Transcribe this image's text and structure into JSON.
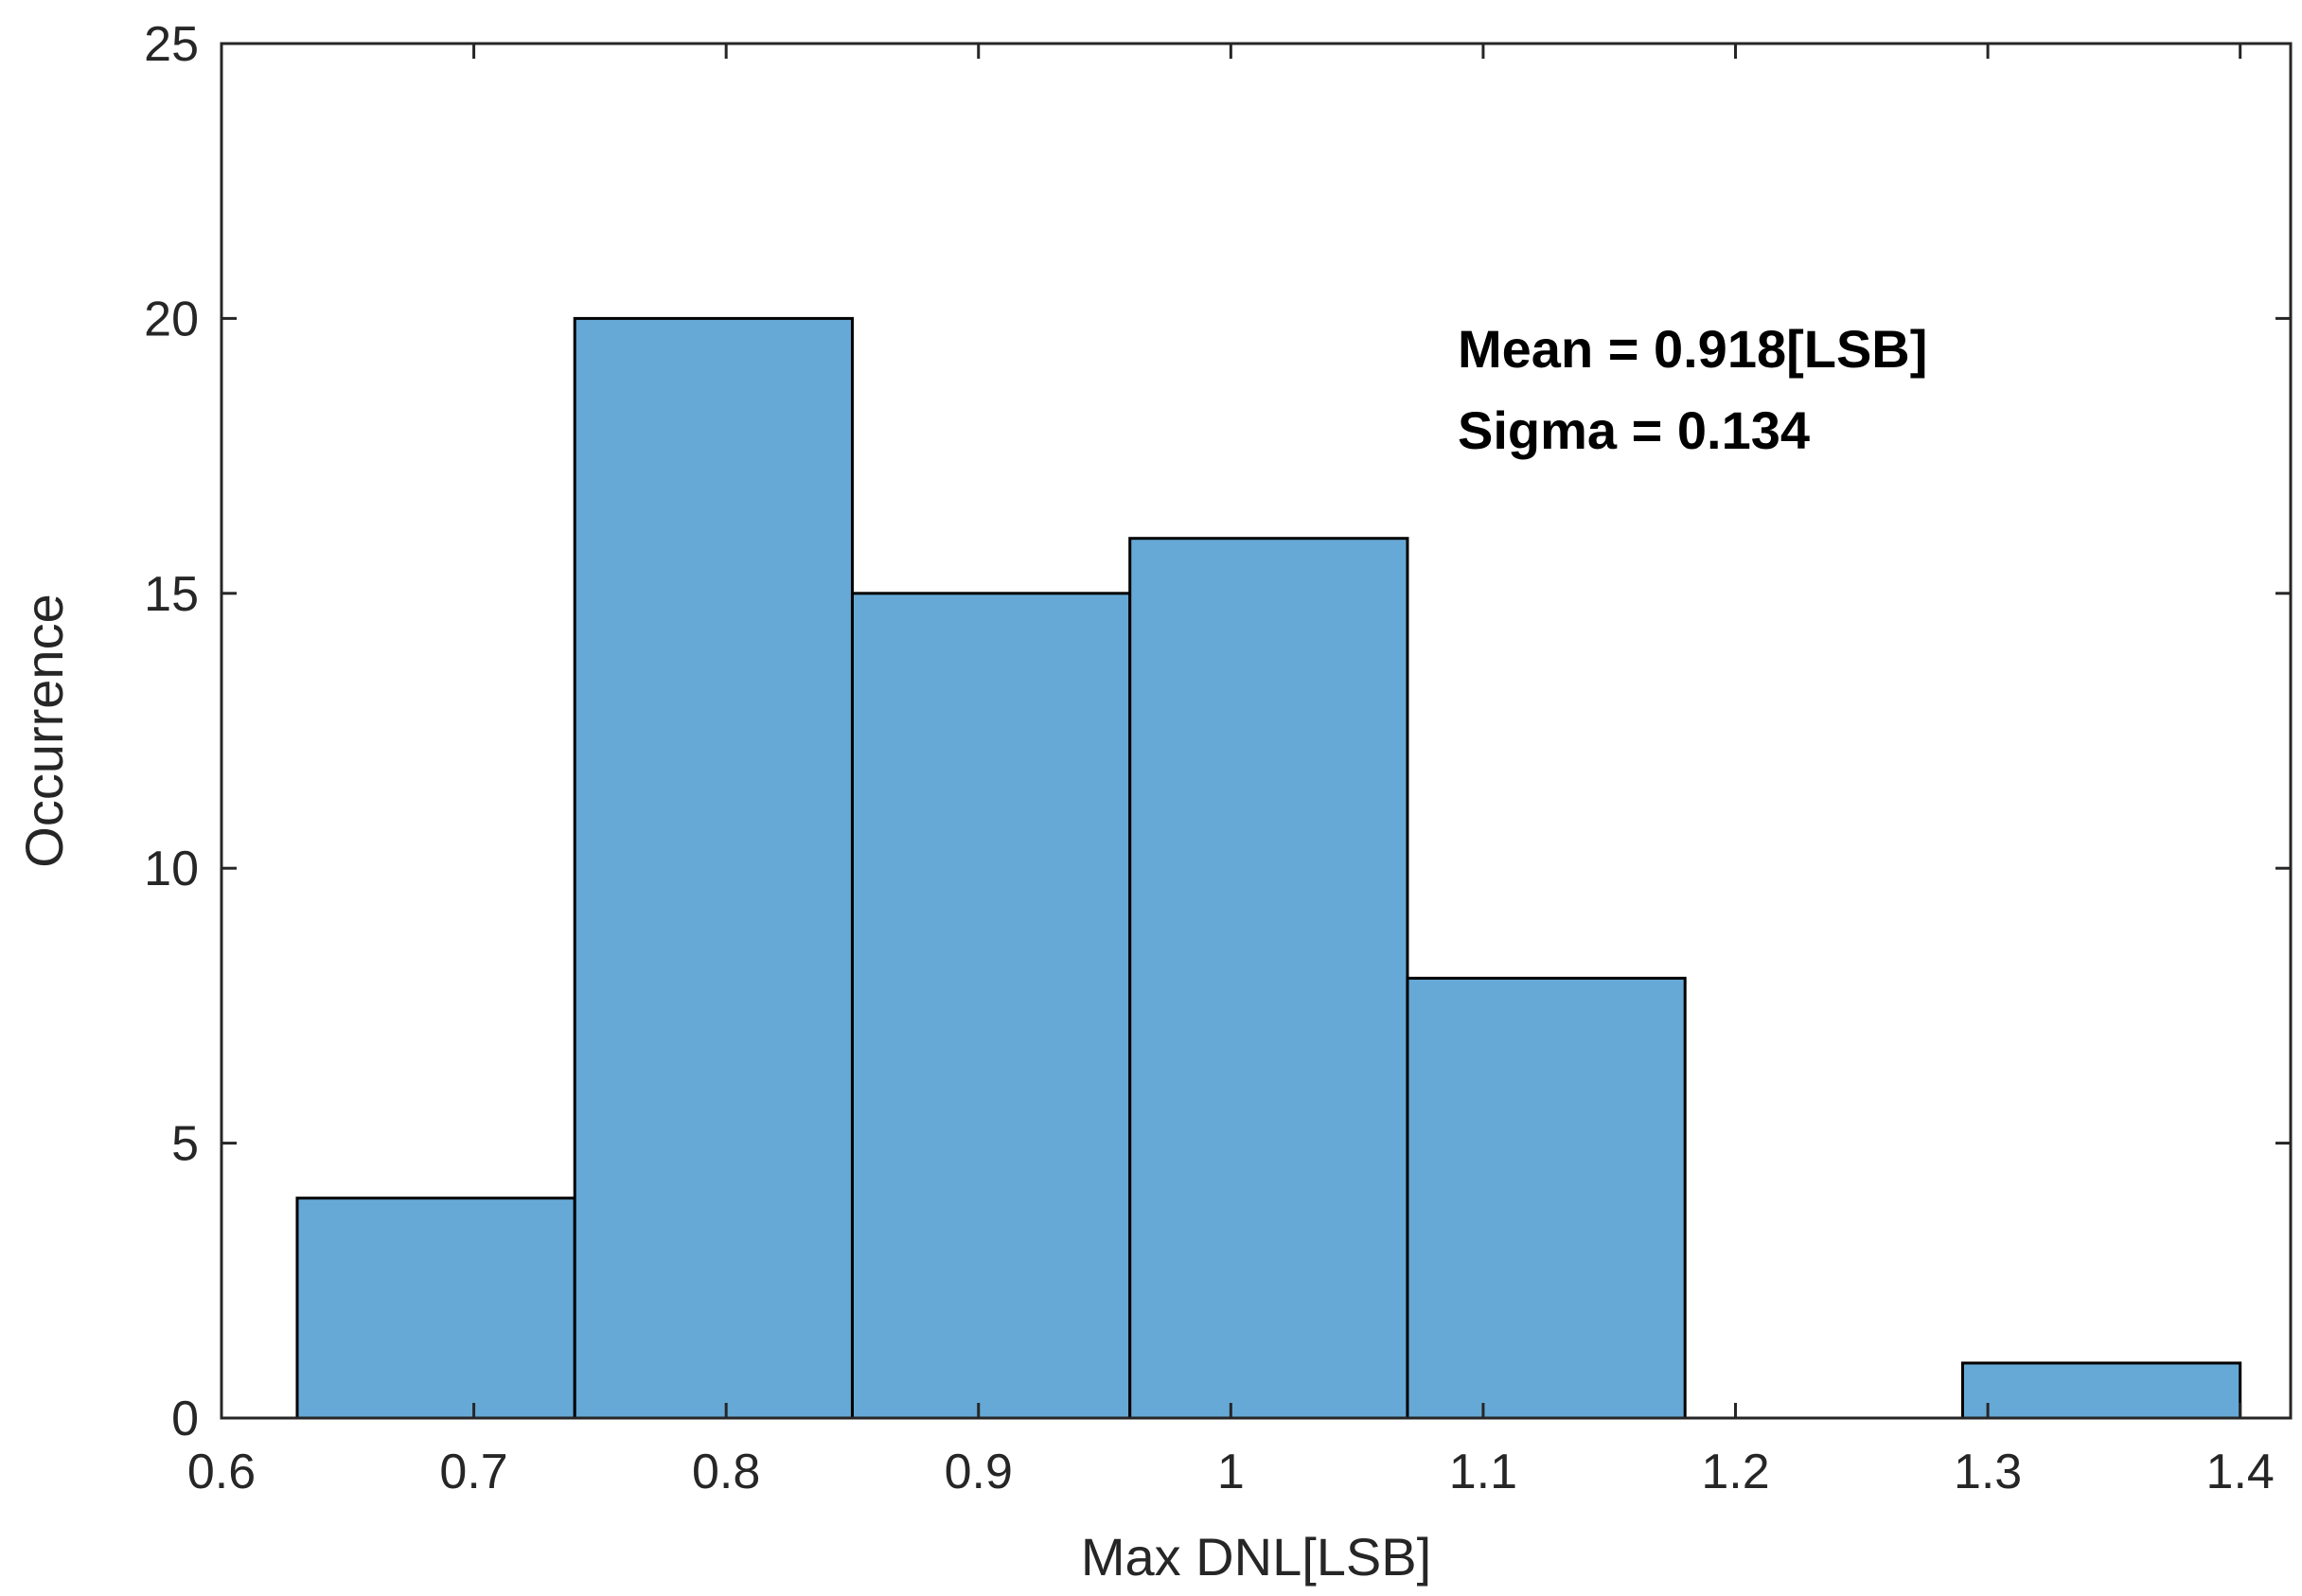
{
  "chart_data": {
    "type": "bar",
    "subtype": "histogram",
    "bins": [
      {
        "x0": 0.63,
        "x1": 0.74,
        "count": 4
      },
      {
        "x0": 0.74,
        "x1": 0.85,
        "count": 20
      },
      {
        "x0": 0.85,
        "x1": 0.96,
        "count": 15
      },
      {
        "x0": 0.96,
        "x1": 1.07,
        "count": 16
      },
      {
        "x0": 1.07,
        "x1": 1.18,
        "count": 8
      },
      {
        "x0": 1.18,
        "x1": 1.29,
        "count": 0
      },
      {
        "x0": 1.29,
        "x1": 1.4,
        "count": 1
      }
    ],
    "xlabel": "Max DNL[LSB]",
    "ylabel": "Occurrence",
    "xlim": [
      0.6,
      1.42
    ],
    "ylim": [
      0,
      25
    ],
    "xticks": [
      0.6,
      0.7,
      0.8,
      0.9,
      1,
      1.1,
      1.2,
      1.3,
      1.4
    ],
    "xtick_labels": [
      "0.6",
      "0.7",
      "0.8",
      "0.9",
      "1",
      "1.1",
      "1.2",
      "1.3",
      "1.4"
    ],
    "yticks": [
      0,
      5,
      10,
      15,
      20,
      25
    ],
    "ytick_labels": [
      "0",
      "5",
      "10",
      "15",
      "20",
      "25"
    ],
    "grid": false,
    "annotations": [
      "Mean = 0.918[LSB]",
      "Sigma = 0.134"
    ],
    "colors": {
      "bar_fill": "#66a9d6",
      "bar_edge": "#000000",
      "axis": "#262626"
    }
  }
}
